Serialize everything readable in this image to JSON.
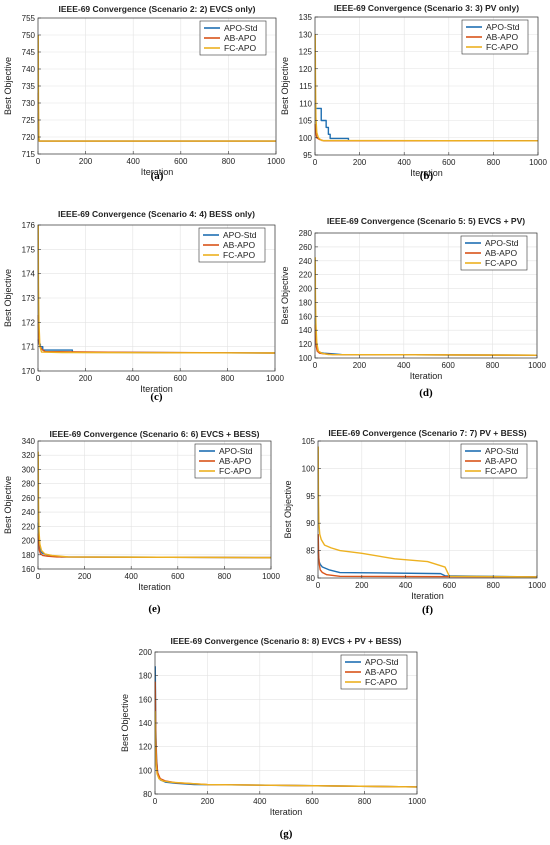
{
  "colors": {
    "APO-Std": "#1f6fb2",
    "AB-APO": "#d95319",
    "FC-APO": "#edb120"
  },
  "chart_data": [
    {
      "type": "line",
      "letter": "(a)",
      "title": "IEEE-69 Convergence (Scenario 2: 2) EVCS only)",
      "xlabel": "Iteration",
      "ylabel": "Best Objective",
      "xlim": [
        0,
        1000
      ],
      "ylim": [
        715,
        755
      ],
      "xticks": [
        0,
        200,
        400,
        600,
        800,
        1000
      ],
      "yticks": [
        715,
        720,
        725,
        730,
        735,
        740,
        745,
        750,
        755
      ],
      "grid": true,
      "legend": "top-right",
      "series": [
        {
          "name": "APO-Std",
          "x": [
            1,
            2,
            3,
            5,
            1000
          ],
          "y": [
            727,
            722,
            720,
            718.8,
            718.8
          ]
        },
        {
          "name": "AB-APO",
          "x": [
            1,
            2,
            3,
            5,
            1000
          ],
          "y": [
            733,
            724,
            719.5,
            718.8,
            718.8
          ]
        },
        {
          "name": "FC-APO",
          "x": [
            1,
            2,
            3,
            5,
            1000
          ],
          "y": [
            750,
            730,
            721,
            718.8,
            718.8
          ]
        }
      ]
    },
    {
      "type": "line",
      "letter": "(b)",
      "title": "IEEE-69 Convergence (Scenario 3: 3) PV only)",
      "xlabel": "Iteration",
      "ylabel": "Best Objective",
      "xlim": [
        0,
        1000
      ],
      "ylim": [
        95,
        135
      ],
      "xticks": [
        0,
        200,
        400,
        600,
        800,
        1000
      ],
      "yticks": [
        95,
        100,
        105,
        110,
        115,
        120,
        125,
        130,
        135
      ],
      "grid": true,
      "legend": "top-right",
      "series": [
        {
          "name": "APO-Std",
          "x": [
            1,
            4,
            10,
            10,
            28,
            28,
            50,
            50,
            60,
            60,
            68,
            68,
            150,
            150,
            1000
          ],
          "y": [
            110,
            108.5,
            108.5,
            108.5,
            108.5,
            105,
            105,
            103,
            103,
            101,
            101,
            99.8,
            99.8,
            99.1,
            99.1
          ]
        },
        {
          "name": "AB-APO",
          "x": [
            1,
            3,
            8,
            20,
            40,
            1000
          ],
          "y": [
            104,
            101.5,
            100,
            99.5,
            99.1,
            99.1
          ]
        },
        {
          "name": "FC-APO",
          "x": [
            1,
            2,
            4,
            8,
            15,
            30,
            1000
          ],
          "y": [
            130,
            118,
            106,
            101.5,
            100,
            99.2,
            99.1
          ]
        }
      ]
    },
    {
      "type": "line",
      "letter": "(c)",
      "title": "IEEE-69 Convergence (Scenario 4: 4) BESS only)",
      "xlabel": "Iteration",
      "ylabel": "Best Objective",
      "xlim": [
        0,
        1000
      ],
      "ylim": [
        170,
        176
      ],
      "xticks": [
        0,
        200,
        400,
        600,
        800,
        1000
      ],
      "yticks": [
        170,
        171,
        172,
        173,
        174,
        175,
        176
      ],
      "grid": true,
      "legend": "top-right",
      "series": [
        {
          "name": "APO-Std",
          "x": [
            1,
            5,
            10,
            10,
            20,
            20,
            145,
            145,
            1000
          ],
          "y": [
            171.3,
            171.1,
            171.1,
            171.0,
            171.0,
            170.86,
            170.86,
            170.77,
            170.74
          ]
        },
        {
          "name": "AB-APO",
          "x": [
            1,
            3,
            6,
            15,
            30,
            300,
            1000
          ],
          "y": [
            172.3,
            171.5,
            171.1,
            170.9,
            170.8,
            170.77,
            170.74
          ]
        },
        {
          "name": "FC-APO",
          "x": [
            1,
            2,
            4,
            8,
            15,
            100,
            1000
          ],
          "y": [
            176.0,
            173.5,
            172.0,
            171.0,
            170.78,
            170.76,
            170.74
          ]
        }
      ]
    },
    {
      "type": "line",
      "letter": "(d)",
      "title": "IEEE-69 Convergence (Scenario 5: 5) EVCS + PV)",
      "xlabel": "Iteration",
      "ylabel": "Best Objective",
      "xlim": [
        0,
        1000
      ],
      "ylim": [
        100,
        280
      ],
      "xticks": [
        0,
        200,
        400,
        600,
        800,
        1000
      ],
      "yticks": [
        100,
        120,
        140,
        160,
        180,
        200,
        220,
        240,
        260,
        280
      ],
      "grid": true,
      "legend": "top-right",
      "series": [
        {
          "name": "APO-Std",
          "x": [
            1,
            3,
            6,
            10,
            20,
            40,
            80,
            120,
            1000
          ],
          "y": [
            158,
            135,
            120,
            112,
            108,
            107,
            106,
            105,
            104
          ]
        },
        {
          "name": "AB-APO",
          "x": [
            1,
            3,
            6,
            10,
            20,
            40,
            80,
            1000
          ],
          "y": [
            148,
            128,
            116,
            110,
            107,
            106,
            105,
            104
          ]
        },
        {
          "name": "FC-APO",
          "x": [
            1,
            2,
            4,
            8,
            15,
            30,
            60,
            1000
          ],
          "y": [
            245,
            190,
            150,
            122,
            110,
            107,
            105,
            104
          ]
        }
      ]
    },
    {
      "type": "line",
      "letter": "(e)",
      "title": "IEEE-69 Convergence (Scenario 6: 6) EVCS + BESS)",
      "xlabel": "Iteration",
      "ylabel": "Best Objective",
      "xlim": [
        0,
        1000
      ],
      "ylim": [
        160,
        340
      ],
      "xticks": [
        0,
        200,
        400,
        600,
        800,
        1000
      ],
      "yticks": [
        160,
        180,
        200,
        220,
        240,
        260,
        280,
        300,
        320,
        340
      ],
      "grid": true,
      "legend": "top-right",
      "series": [
        {
          "name": "APO-Std",
          "x": [
            1,
            3,
            6,
            10,
            20,
            40,
            70,
            100,
            1000
          ],
          "y": [
            225,
            205,
            192,
            185,
            182,
            180,
            178,
            177,
            176
          ]
        },
        {
          "name": "AB-APO",
          "x": [
            1,
            3,
            6,
            10,
            20,
            40,
            80,
            1000
          ],
          "y": [
            210,
            195,
            186,
            182,
            179,
            178,
            177,
            176
          ]
        },
        {
          "name": "FC-APO",
          "x": [
            1,
            2,
            4,
            8,
            15,
            30,
            60,
            130,
            1000
          ],
          "y": [
            325,
            260,
            215,
            195,
            186,
            181,
            179,
            177,
            176
          ]
        }
      ]
    },
    {
      "type": "line",
      "letter": "(f)",
      "title": "IEEE-69 Convergence (Scenario 7: 7) PV + BESS)",
      "xlabel": "Iteration",
      "ylabel": "Best Objective",
      "xlim": [
        0,
        1000
      ],
      "ylim": [
        80,
        105
      ],
      "xticks": [
        0,
        200,
        400,
        600,
        800,
        1000
      ],
      "yticks": [
        80,
        85,
        90,
        95,
        100,
        105
      ],
      "grid": true,
      "legend": "top-right",
      "series": [
        {
          "name": "APO-Std",
          "x": [
            1,
            5,
            10,
            20,
            50,
            100,
            560,
            580,
            1000
          ],
          "y": [
            85,
            83,
            82.5,
            82,
            81.5,
            81,
            80.8,
            80.4,
            80.2
          ]
        },
        {
          "name": "AB-APO",
          "x": [
            1,
            3,
            6,
            10,
            20,
            40,
            100,
            1000
          ],
          "y": [
            88,
            84,
            82.5,
            81.5,
            81,
            80.6,
            80.3,
            80.2
          ]
        },
        {
          "name": "FC-APO",
          "x": [
            1,
            2,
            4,
            8,
            15,
            30,
            60,
            100,
            200,
            350,
            500,
            580,
            600,
            1000
          ],
          "y": [
            104,
            95,
            90,
            88,
            87,
            86,
            85.5,
            85,
            84.5,
            83.5,
            83,
            82,
            80.3,
            80.2
          ]
        }
      ]
    },
    {
      "type": "line",
      "letter": "(g)",
      "title": "IEEE-69 Convergence (Scenario 8: 8) EVCS + PV + BESS)",
      "xlabel": "Iteration",
      "ylabel": "Best Objective",
      "xlim": [
        0,
        1000
      ],
      "ylim": [
        80,
        200
      ],
      "xticks": [
        0,
        200,
        400,
        600,
        800,
        1000
      ],
      "yticks": [
        80,
        100,
        120,
        140,
        160,
        180,
        200
      ],
      "grid": true,
      "legend": "top-right",
      "series": [
        {
          "name": "APO-Std",
          "x": [
            1,
            3,
            6,
            10,
            20,
            40,
            80,
            150,
            400,
            1000
          ],
          "y": [
            188,
            135,
            110,
            98,
            92,
            90,
            89,
            88,
            87.5,
            86
          ]
        },
        {
          "name": "AB-APO",
          "x": [
            1,
            3,
            6,
            10,
            20,
            40,
            80,
            200,
            1000
          ],
          "y": [
            175,
            128,
            108,
            98,
            93,
            91,
            89.5,
            88,
            86
          ]
        },
        {
          "name": "FC-APO",
          "x": [
            1,
            2,
            4,
            8,
            15,
            30,
            60,
            200,
            1000
          ],
          "y": [
            150,
            120,
            105,
            97,
            93,
            91,
            90,
            88,
            86
          ]
        }
      ]
    }
  ]
}
